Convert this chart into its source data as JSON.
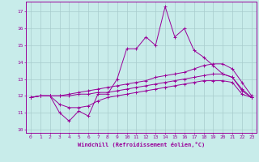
{
  "xlabel": "Windchill (Refroidissement éolien,°C)",
  "xlim": [
    -0.5,
    23.5
  ],
  "ylim": [
    9.8,
    17.6
  ],
  "yticks": [
    10,
    11,
    12,
    13,
    14,
    15,
    16,
    17
  ],
  "xticks": [
    0,
    1,
    2,
    3,
    4,
    5,
    6,
    7,
    8,
    9,
    10,
    11,
    12,
    13,
    14,
    15,
    16,
    17,
    18,
    19,
    20,
    21,
    22,
    23
  ],
  "bg_color": "#c8ecea",
  "line_color": "#990099",
  "grid_color": "#a8cccc",
  "series": [
    [
      11.9,
      12.0,
      12.0,
      11.0,
      10.5,
      11.1,
      10.8,
      12.1,
      12.1,
      13.0,
      14.8,
      14.8,
      15.5,
      15.0,
      17.3,
      15.5,
      16.0,
      14.7,
      14.3,
      13.8,
      13.3,
      13.1,
      12.3,
      11.9
    ],
    [
      11.9,
      12.0,
      12.0,
      12.0,
      12.1,
      12.2,
      12.3,
      12.4,
      12.5,
      12.6,
      12.7,
      12.8,
      12.9,
      13.1,
      13.2,
      13.3,
      13.4,
      13.6,
      13.8,
      13.9,
      13.9,
      13.6,
      12.8,
      12.0
    ],
    [
      11.9,
      12.0,
      12.0,
      12.0,
      12.0,
      12.1,
      12.1,
      12.2,
      12.2,
      12.3,
      12.4,
      12.5,
      12.6,
      12.7,
      12.8,
      12.9,
      13.0,
      13.1,
      13.2,
      13.3,
      13.3,
      13.1,
      12.4,
      11.9
    ],
    [
      11.9,
      12.0,
      12.0,
      11.5,
      11.3,
      11.3,
      11.4,
      11.7,
      11.9,
      12.0,
      12.1,
      12.2,
      12.3,
      12.4,
      12.5,
      12.6,
      12.7,
      12.8,
      12.9,
      12.9,
      12.9,
      12.8,
      12.1,
      11.9
    ]
  ]
}
